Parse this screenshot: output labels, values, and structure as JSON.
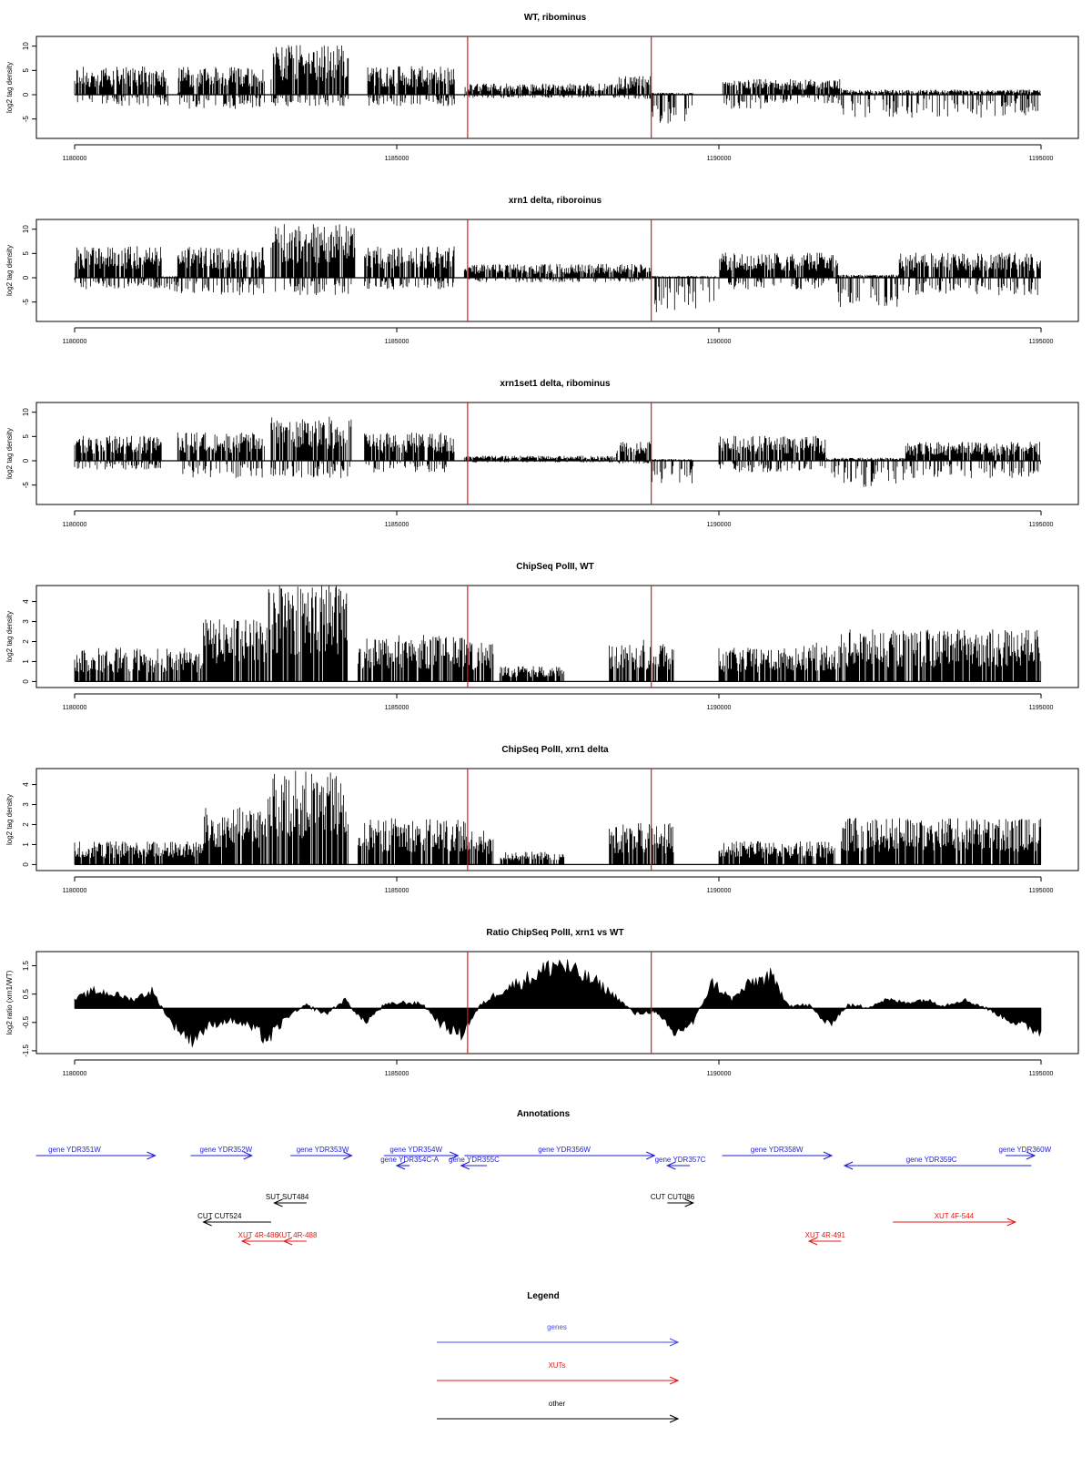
{
  "x_ticks": [
    "1180000",
    "1185000",
    "1190000",
    "1195000"
  ],
  "chart_data": [
    {
      "type": "bar",
      "title": "WT, ribominus",
      "ylabel": "log2 tag density",
      "xlim": [
        1180000,
        1195000
      ],
      "ylim": [
        -9,
        12
      ],
      "yticks": [
        "10",
        "5",
        "0",
        "-5"
      ],
      "vlines": [
        1186100,
        1188950
      ],
      "segments": [
        {
          "start": 1180000,
          "end": 1181450,
          "pos": 4.5,
          "neg": -2
        },
        {
          "start": 1181600,
          "end": 1181700,
          "pos": 0.5,
          "neg": -1
        },
        {
          "start": 1181600,
          "end": 1182950,
          "pos": 4.5,
          "neg": -2.5
        },
        {
          "start": 1183050,
          "end": 1184250,
          "pos": 8,
          "neg": -2
        },
        {
          "start": 1184550,
          "end": 1185900,
          "pos": 4.5,
          "neg": -2
        },
        {
          "start": 1186050,
          "end": 1188450,
          "pos": 1.8,
          "neg": -0.6
        },
        {
          "start": 1188450,
          "end": 1188950,
          "pos": 3,
          "neg": -0.8
        },
        {
          "start": 1188950,
          "end": 1189600,
          "pos": 0.3,
          "neg": -5
        },
        {
          "start": 1190050,
          "end": 1190700,
          "pos": 2.5,
          "neg": -2.5
        },
        {
          "start": 1190700,
          "end": 1191900,
          "pos": 2.5,
          "neg": -1.5
        },
        {
          "start": 1191900,
          "end": 1195000,
          "pos": 0.8,
          "neg": -4
        }
      ]
    },
    {
      "type": "bar",
      "title": "xrn1 delta, riboroinus",
      "ylabel": "log2 tag density",
      "xlim": [
        1180000,
        1195000
      ],
      "ylim": [
        -9,
        12
      ],
      "yticks": [
        "10",
        "5",
        "0",
        "-5"
      ],
      "vlines": [
        1186100,
        1188950
      ],
      "segments": [
        {
          "start": 1180000,
          "end": 1181350,
          "pos": 5,
          "neg": -2
        },
        {
          "start": 1181350,
          "end": 1181600,
          "pos": 0.3,
          "neg": -2.5
        },
        {
          "start": 1181600,
          "end": 1182950,
          "pos": 5,
          "neg": -3
        },
        {
          "start": 1183050,
          "end": 1184350,
          "pos": 8.5,
          "neg": -3
        },
        {
          "start": 1184500,
          "end": 1185900,
          "pos": 5,
          "neg": -2
        },
        {
          "start": 1186050,
          "end": 1188950,
          "pos": 2.2,
          "neg": -0.8
        },
        {
          "start": 1188950,
          "end": 1189950,
          "pos": 0.3,
          "neg": -6
        },
        {
          "start": 1190000,
          "end": 1191850,
          "pos": 4,
          "neg": -2
        },
        {
          "start": 1191850,
          "end": 1192800,
          "pos": 0.5,
          "neg": -5
        },
        {
          "start": 1192800,
          "end": 1195000,
          "pos": 4,
          "neg": -3
        }
      ]
    },
    {
      "type": "bar",
      "title": "xrn1set1 delta, ribominus",
      "ylabel": "log2 tag density",
      "xlim": [
        1180000,
        1195000
      ],
      "ylim": [
        -9,
        12
      ],
      "yticks": [
        "10",
        "5",
        "0",
        "-5"
      ],
      "vlines": [
        1186100,
        1188950
      ],
      "segments": [
        {
          "start": 1180000,
          "end": 1181350,
          "pos": 4,
          "neg": -1.5
        },
        {
          "start": 1181600,
          "end": 1182950,
          "pos": 4.5,
          "neg": -3
        },
        {
          "start": 1183050,
          "end": 1184300,
          "pos": 7,
          "neg": -3
        },
        {
          "start": 1184500,
          "end": 1185900,
          "pos": 4.5,
          "neg": -2
        },
        {
          "start": 1186050,
          "end": 1188400,
          "pos": 0.8,
          "neg": -0.3
        },
        {
          "start": 1188400,
          "end": 1188950,
          "pos": 3,
          "neg": -0.5
        },
        {
          "start": 1188950,
          "end": 1189600,
          "pos": 0.3,
          "neg": -4
        },
        {
          "start": 1190000,
          "end": 1191650,
          "pos": 4,
          "neg": -2
        },
        {
          "start": 1191650,
          "end": 1192900,
          "pos": 0.5,
          "neg": -4.5
        },
        {
          "start": 1192900,
          "end": 1195000,
          "pos": 3,
          "neg": -3
        }
      ]
    },
    {
      "type": "bar",
      "title": "ChipSeq PolII, WT",
      "ylabel": "log2 tag density",
      "xlim": [
        1180000,
        1195000
      ],
      "ylim": [
        -0.3,
        4.8
      ],
      "yticks": [
        "4",
        "3",
        "2",
        "1",
        "0"
      ],
      "vlines": [
        1186100,
        1188950
      ],
      "segments": [
        {
          "start": 1180000,
          "end": 1182000,
          "pos": 1.3,
          "neg": 0
        },
        {
          "start": 1182000,
          "end": 1183000,
          "pos": 2.4,
          "neg": 0
        },
        {
          "start": 1183000,
          "end": 1184250,
          "pos": 3.8,
          "neg": 0
        },
        {
          "start": 1184400,
          "end": 1186100,
          "pos": 1.8,
          "neg": 0
        },
        {
          "start": 1186100,
          "end": 1186500,
          "pos": 1.5,
          "neg": 0
        },
        {
          "start": 1186600,
          "end": 1187600,
          "pos": 0.6,
          "neg": 0
        },
        {
          "start": 1188300,
          "end": 1189300,
          "pos": 1.6,
          "neg": 0
        },
        {
          "start": 1190000,
          "end": 1191300,
          "pos": 1.3,
          "neg": 0
        },
        {
          "start": 1191300,
          "end": 1191900,
          "pos": 1.5,
          "neg": 0
        },
        {
          "start": 1191900,
          "end": 1195000,
          "pos": 2,
          "neg": 0
        }
      ]
    },
    {
      "type": "bar",
      "title": "ChipSeq PolII, xrn1 delta",
      "ylabel": "log2 tag density",
      "xlim": [
        1180000,
        1195000
      ],
      "ylim": [
        -0.3,
        4.8
      ],
      "yticks": [
        "4",
        "3",
        "2",
        "1",
        "0"
      ],
      "vlines": [
        1186100,
        1188950
      ],
      "segments": [
        {
          "start": 1180000,
          "end": 1182000,
          "pos": 0.9,
          "neg": 0
        },
        {
          "start": 1182000,
          "end": 1183000,
          "pos": 2.2,
          "neg": 0
        },
        {
          "start": 1183000,
          "end": 1184250,
          "pos": 3.6,
          "neg": 0
        },
        {
          "start": 1184400,
          "end": 1186100,
          "pos": 1.8,
          "neg": 0
        },
        {
          "start": 1186100,
          "end": 1186500,
          "pos": 1.3,
          "neg": 0
        },
        {
          "start": 1186600,
          "end": 1187600,
          "pos": 0.5,
          "neg": 0
        },
        {
          "start": 1188300,
          "end": 1189300,
          "pos": 1.6,
          "neg": 0
        },
        {
          "start": 1190000,
          "end": 1191800,
          "pos": 0.9,
          "neg": 0
        },
        {
          "start": 1191900,
          "end": 1195000,
          "pos": 1.8,
          "neg": 0
        }
      ]
    },
    {
      "type": "area",
      "title": "Ratio ChipSeq PolII, xrn1 vs WT",
      "ylabel": "log2 ratio (xrn1/WT)",
      "xlim": [
        1180000,
        1195000
      ],
      "ylim": [
        -1.6,
        2.0
      ],
      "yticks": [
        "1.5",
        "0.5",
        "-0.5",
        "-1.5"
      ],
      "vlines": [
        1186100,
        1188950
      ],
      "x": [
        1180000,
        1180300,
        1180600,
        1180900,
        1181200,
        1181500,
        1181800,
        1182100,
        1182400,
        1182700,
        1183000,
        1183300,
        1183600,
        1183900,
        1184200,
        1184500,
        1184800,
        1185100,
        1185400,
        1185700,
        1186000,
        1186300,
        1186600,
        1186900,
        1187200,
        1187500,
        1187800,
        1188100,
        1188400,
        1188700,
        1189000,
        1189300,
        1189600,
        1189900,
        1190200,
        1190500,
        1190800,
        1191100,
        1191400,
        1191700,
        1192000,
        1192300,
        1192600,
        1192900,
        1193200,
        1193500,
        1193800,
        1194100,
        1194400,
        1194700,
        1195000
      ],
      "y": [
        0.3,
        0.6,
        0.5,
        0.3,
        0.6,
        -0.5,
        -1.1,
        -0.6,
        -0.4,
        -0.6,
        -1.1,
        -0.3,
        0.1,
        -0.2,
        0.3,
        -0.5,
        0.1,
        0.2,
        0.15,
        -0.6,
        -0.9,
        0.1,
        0.6,
        0.9,
        1.2,
        1.6,
        1.2,
        0.9,
        0.4,
        -0.2,
        -0.1,
        -0.9,
        -0.5,
        0.9,
        0.3,
        0.9,
        1.1,
        0.1,
        0.1,
        -0.6,
        0.1,
        0.05,
        0.3,
        0.2,
        0.3,
        0.1,
        0.3,
        0.05,
        -0.3,
        -0.6,
        -0.8
      ]
    }
  ],
  "annotations": {
    "title": "Annotations",
    "items": [
      {
        "label": "gene YDR351W",
        "color": "#1f1fd6",
        "start": 1179400,
        "end": 1181250,
        "dir": "right",
        "row": 0,
        "lx": 1180000
      },
      {
        "label": "gene YDR352W",
        "color": "#1f1fd6",
        "start": 1181800,
        "end": 1182750,
        "dir": "right",
        "row": 0,
        "lx": 1182350
      },
      {
        "label": "gene YDR353W",
        "color": "#1f1fd6",
        "start": 1183350,
        "end": 1184300,
        "dir": "right",
        "row": 0,
        "lx": 1183850
      },
      {
        "label": "gene YDR354W",
        "color": "#1f1fd6",
        "start": 1184800,
        "end": 1185950,
        "dir": "right",
        "row": 0,
        "lx": 1185300
      },
      {
        "label": "gene YDR354C-A",
        "color": "#1f1fd6",
        "start": 1185000,
        "end": 1185200,
        "dir": "left",
        "row": 1,
        "lx": 1185200
      },
      {
        "label": "gene YDR355C",
        "color": "#1f1fd6",
        "start": 1186000,
        "end": 1186400,
        "dir": "left",
        "row": 1,
        "lx": 1186200
      },
      {
        "label": "gene YDR356W",
        "color": "#1f1fd6",
        "start": 1186050,
        "end": 1189000,
        "dir": "right",
        "row": 0,
        "lx": 1187600
      },
      {
        "label": "gene YDR357C",
        "color": "#1f1fd6",
        "start": 1189200,
        "end": 1189550,
        "dir": "left",
        "row": 1,
        "lx": 1189400
      },
      {
        "label": "gene YDR358W",
        "color": "#1f1fd6",
        "start": 1190050,
        "end": 1191750,
        "dir": "right",
        "row": 0,
        "lx": 1190900
      },
      {
        "label": "gene YDR359C",
        "color": "#1f1fd6",
        "start": 1191950,
        "end": 1194850,
        "dir": "left",
        "row": 1,
        "lx": 1193300
      },
      {
        "label": "gene YDR360W",
        "color": "#1f1fd6",
        "start": 1194450,
        "end": 1194900,
        "dir": "right",
        "row": 0,
        "lx": 1194750
      },
      {
        "label": "SUT SUT484",
        "color": "#000000",
        "start": 1183100,
        "end": 1183600,
        "dir": "left",
        "row": 3,
        "lx": 1183300
      },
      {
        "label": "CUT CUT524",
        "color": "#000000",
        "start": 1182000,
        "end": 1183050,
        "dir": "left",
        "row": 4,
        "lx": 1182250
      },
      {
        "label": "CUT CUT086",
        "color": "#000000",
        "start": 1189200,
        "end": 1189600,
        "dir": "right",
        "row": 3,
        "lx": 1189280
      },
      {
        "label": "XUT 4R-486",
        "color": "#e01818",
        "start": 1182600,
        "end": 1183300,
        "dir": "left",
        "row": 5,
        "lx": 1182850
      },
      {
        "label": "XUT 4R-488",
        "color": "#e01818",
        "start": 1183250,
        "end": 1183600,
        "dir": "left",
        "row": 5,
        "lx": 1183450
      },
      {
        "label": "XUT 4R-491",
        "color": "#e01818",
        "start": 1191400,
        "end": 1191900,
        "dir": "left",
        "row": 5,
        "lx": 1191650
      },
      {
        "label": "XUT 4F-544",
        "color": "#e01818",
        "start": 1192700,
        "end": 1194600,
        "dir": "right",
        "row": 4,
        "lx": 1193650
      }
    ]
  },
  "legend": {
    "title": "Legend",
    "items": [
      {
        "label": "genes",
        "color": "#4a4af0"
      },
      {
        "label": "XUTs",
        "color": "#e01818"
      },
      {
        "label": "other",
        "color": "#000000"
      }
    ]
  }
}
